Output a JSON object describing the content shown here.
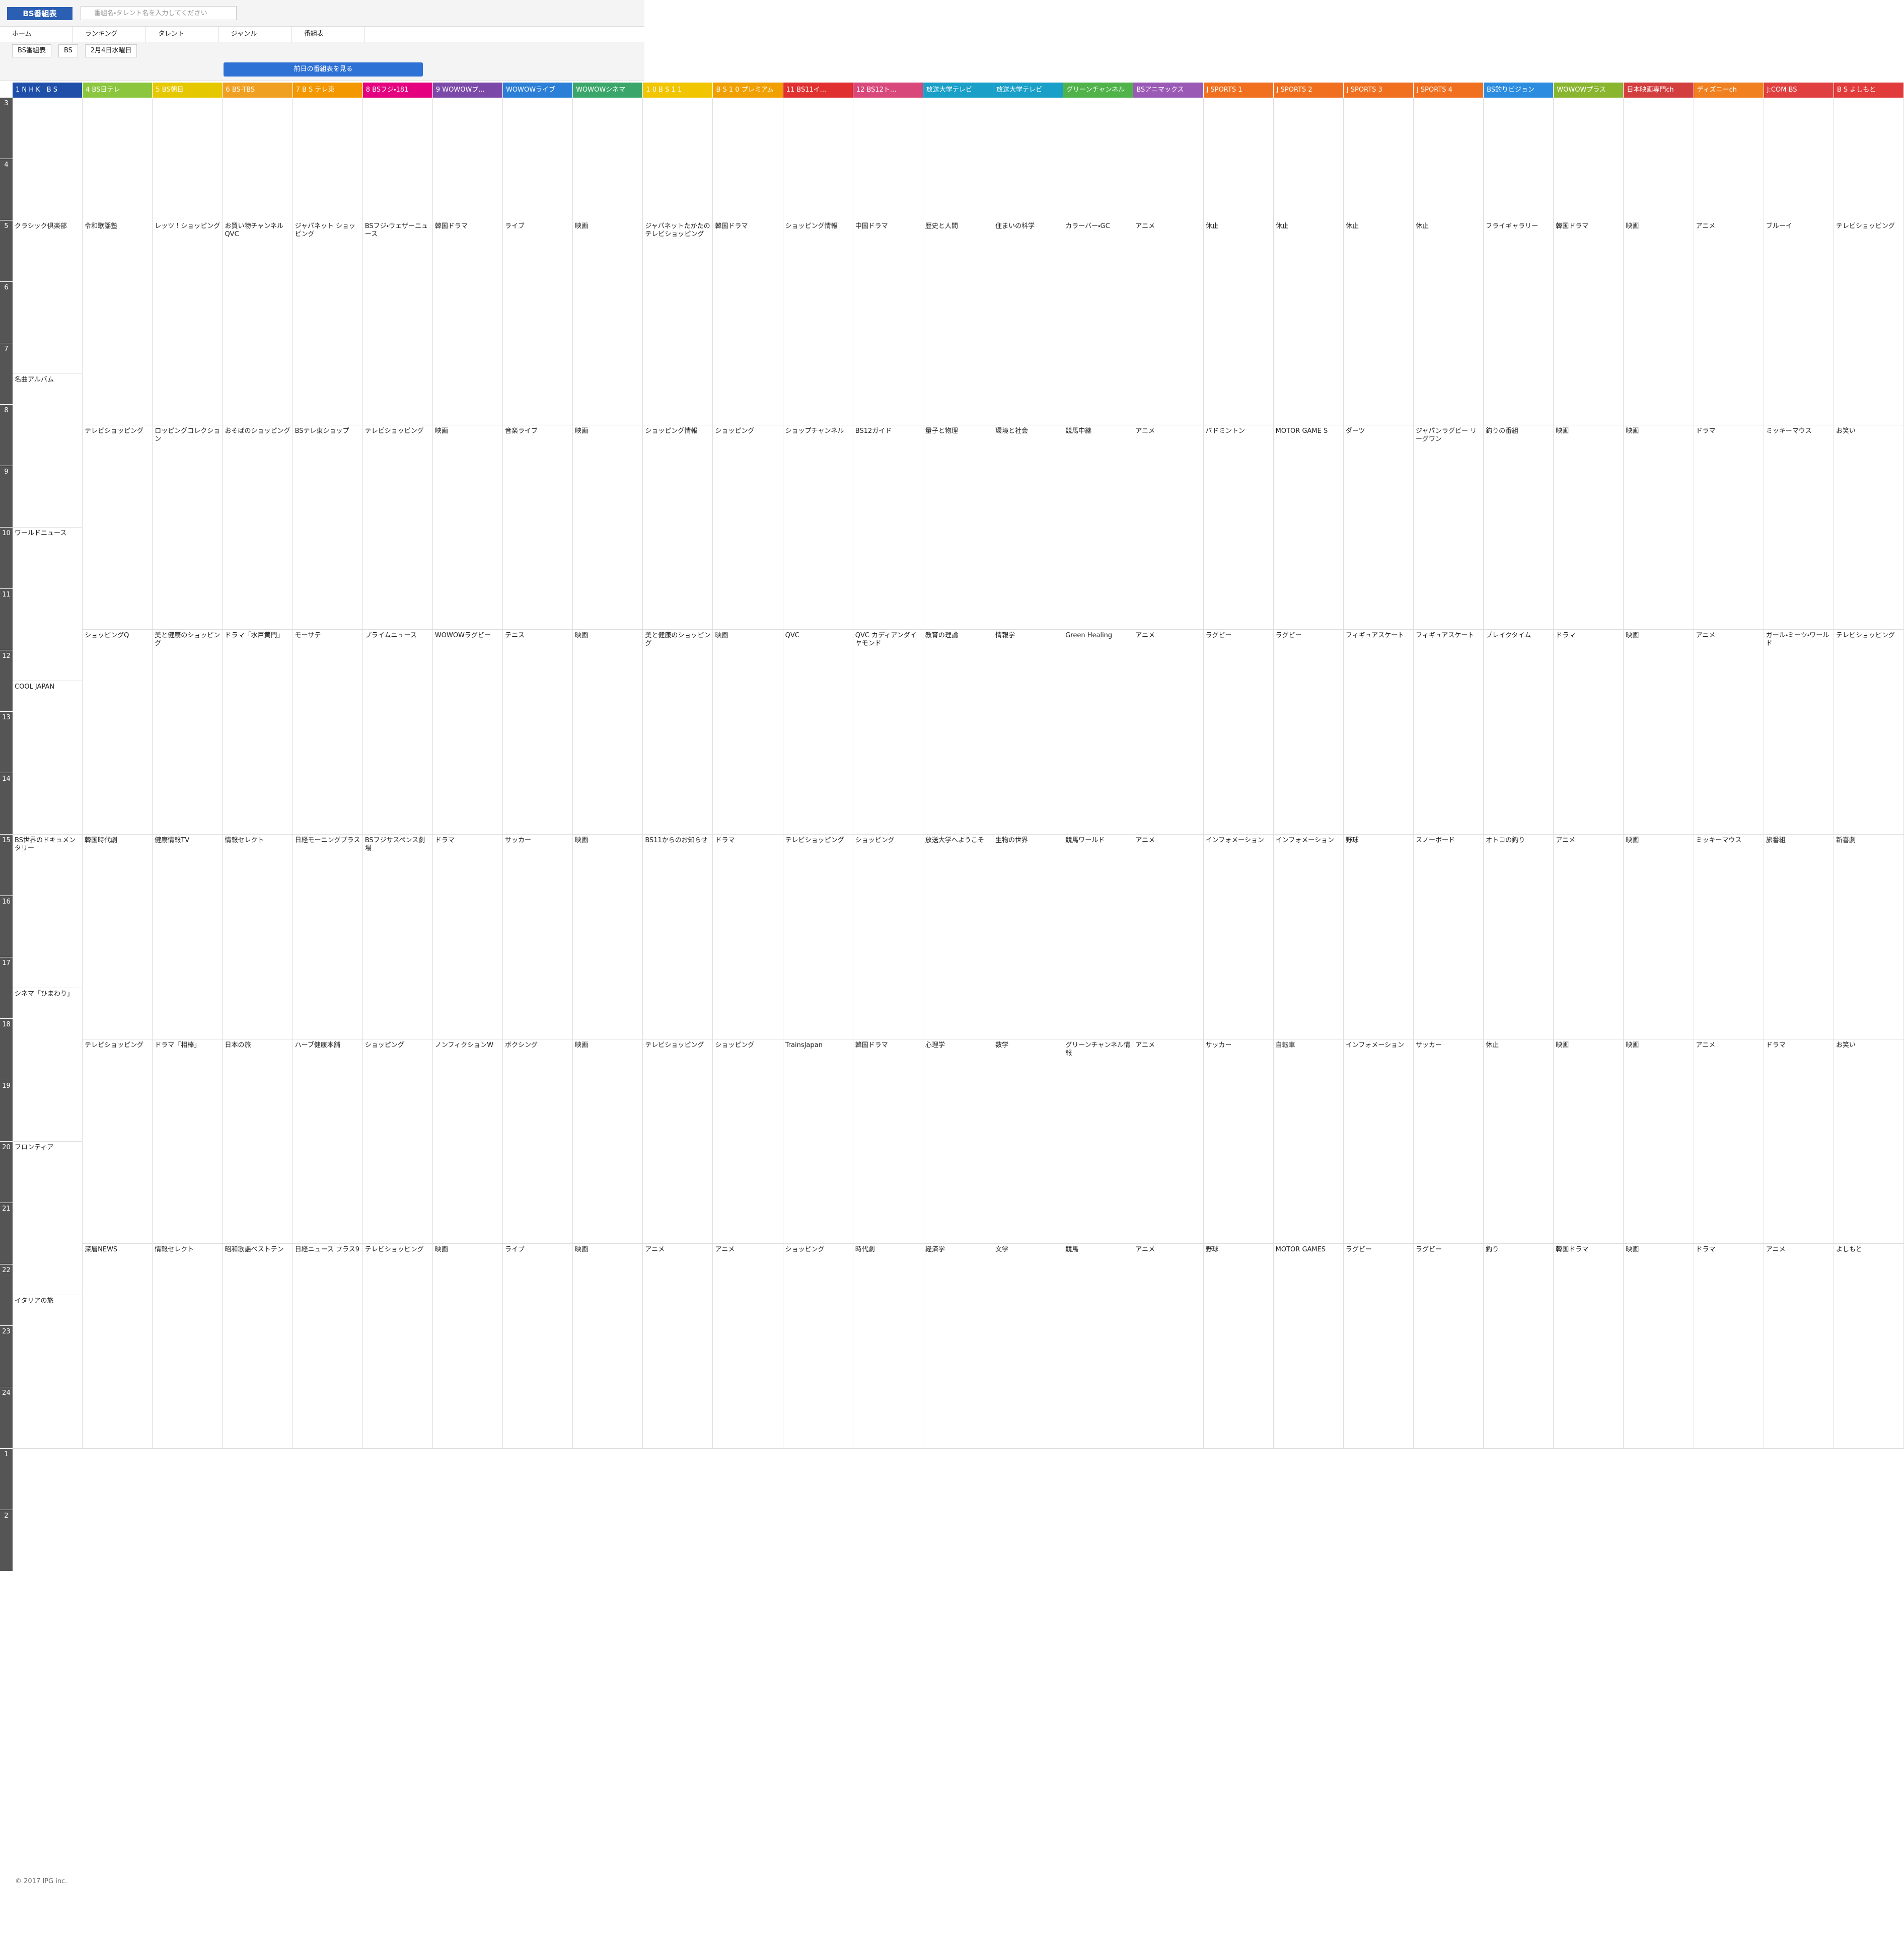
{
  "header": {
    "logo": "BS番組表",
    "search_placeholder": "番組名・タレント名を入力してください",
    "tabs": [
      "ホーム",
      "ランキング",
      "タレント",
      "ジャンル",
      "番組表"
    ],
    "selects": [
      "BS番組表",
      "BS",
      "2月4日水曜日"
    ],
    "prev_button": "前日の番組表を見る"
  },
  "hours": [
    "3",
    "4",
    "5",
    "6",
    "7",
    "8",
    "9",
    "10",
    "11",
    "12",
    "13",
    "14",
    "15",
    "16",
    "17",
    "18",
    "19",
    "20",
    "21",
    "22",
    "23",
    "24",
    "1",
    "2"
  ],
  "channels": [
    {
      "name": "1 N H K　B S",
      "color": "#1f4fa8",
      "programs": [
        "クラシック倶楽部",
        "名曲アルバム",
        "ワールドニュース",
        "COOL JAPAN",
        "BS世界のドキュメンタリー",
        "シネマ「ひまわり」",
        "フロンティア",
        "イタリアの旅"
      ]
    },
    {
      "name": "4 BS日テレ",
      "color": "#8cc63f",
      "programs": [
        "令和歌謡塾",
        "テレビショッピング",
        "ショッピングQ",
        "韓国時代劇",
        "テレビショッピング",
        "深層NEWS"
      ]
    },
    {
      "name": "5 BS朝日",
      "color": "#e6c800",
      "programs": [
        "レッツ！ショッピング",
        "ロッピングコレクション",
        "美と健康のショッピング",
        "健康情報TV",
        "ドラマ「相棒」",
        "情報セレクト"
      ]
    },
    {
      "name": "6 BS-TBS",
      "color": "#f0a020",
      "programs": [
        "お買い物チャンネル QVC",
        "おそばのショッピング",
        "ドラマ「水戸黄門」",
        "情報セレクト",
        "日本の旅",
        "昭和歌謡ベストテン"
      ]
    },
    {
      "name": "7 B S テレ東",
      "color": "#f39800",
      "programs": [
        "ジャパネット ショッピング",
        "BSテレ東ショップ",
        "モーサテ",
        "日経モーニングプラス",
        "ハーブ健康本舗",
        "日経ニュース プラス9"
      ]
    },
    {
      "name": "8 BSフジ・181",
      "color": "#e4007f",
      "programs": [
        "BSフジ・ウェザーニュース",
        "テレビショッピング",
        "プライムニュース",
        "BSフジサスペンス劇場",
        "ショッピング",
        "テレビショッピング"
      ]
    },
    {
      "name": "9 WOWOWプ...",
      "color": "#7b4aa8",
      "programs": [
        "韓国ドラマ",
        "映画",
        "WOWOWラグビー",
        "ドラマ",
        "ノンフィクションW",
        "映画"
      ]
    },
    {
      "name": "WOWOWライブ",
      "color": "#2c7fd6",
      "programs": [
        "ライブ",
        "音楽ライブ",
        "テニス",
        "サッカー",
        "ボクシング",
        "ライブ"
      ]
    },
    {
      "name": "WOWOWシネマ",
      "color": "#3aa66a",
      "programs": [
        "映画",
        "映画",
        "映画",
        "映画",
        "映画",
        "映画"
      ]
    },
    {
      "name": "1 0 B S 1 1",
      "color": "#f1c500",
      "programs": [
        "ジャパネットたかたのテレビショッピング",
        "ショッピング情報",
        "美と健康のショッピング",
        "BS11からのお知らせ",
        "テレビショッピング",
        "アニメ"
      ]
    },
    {
      "name": "B S 1 0 プレミアム",
      "color": "#f0a000",
      "programs": [
        "韓国ドラマ",
        "ショッピング",
        "映画",
        "ドラマ",
        "ショッピング",
        "アニメ"
      ]
    },
    {
      "name": "11 BS11イ...",
      "color": "#e03030",
      "programs": [
        "ショッピング情報",
        "ショップチャンネル",
        "QVC",
        "テレビショッピング",
        "TrainsJapan",
        "ショッピング"
      ]
    },
    {
      "name": "12 BS12ト...",
      "color": "#d9487a",
      "programs": [
        "中国ドラマ",
        "BS12ガイド",
        "QVC カディアンダイヤモンド",
        "ショッピング",
        "韓国ドラマ",
        "時代劇"
      ]
    },
    {
      "name": "放送大学テレビ",
      "color": "#1aa0c8",
      "programs": [
        "歴史と人間",
        "量子と物理",
        "教育の理論",
        "放送大学へようこそ",
        "心理学",
        "経済学"
      ]
    },
    {
      "name": "放送大学テレビ",
      "color": "#1aa0c8",
      "programs": [
        "住まいの科学",
        "環境と社会",
        "情報学",
        "生物の世界",
        "数学",
        "文学"
      ]
    },
    {
      "name": "グリーンチャンネル",
      "color": "#4fb34a",
      "programs": [
        "カラーバー・GC",
        "競馬中継",
        "Green Healing",
        "競馬ワールド",
        "グリーンチャンネル情報",
        "競馬"
      ]
    },
    {
      "name": "BSアニマックス",
      "color": "#9b59b6",
      "programs": [
        "アニメ",
        "アニメ",
        "アニメ",
        "アニメ",
        "アニメ",
        "アニメ"
      ]
    },
    {
      "name": "J SPORTS 1",
      "color": "#f07020",
      "programs": [
        "休止",
        "バドミントン",
        "ラグビー",
        "インフォメーション",
        "サッカー",
        "野球"
      ]
    },
    {
      "name": "J SPORTS 2",
      "color": "#f07020",
      "programs": [
        "休止",
        "MOTOR GAME S",
        "ラグビー",
        "インフォメーション",
        "自転車",
        "MOTOR GAMES"
      ]
    },
    {
      "name": "J SPORTS 3",
      "color": "#f07020",
      "programs": [
        "休止",
        "ダーツ",
        "フィギュアスケート",
        "野球",
        "インフォメーション",
        "ラグビー"
      ]
    },
    {
      "name": "J SPORTS 4",
      "color": "#f07020",
      "programs": [
        "休止",
        "ジャパンラグビー リーグワン",
        "フィギュアスケート",
        "スノーボード",
        "サッカー",
        "ラグビー"
      ]
    },
    {
      "name": "BS釣りビジョン",
      "color": "#2b8ce0",
      "programs": [
        "フライギャラリー",
        "釣りの番組",
        "ブレイクタイム",
        "オトコの釣り",
        "休止",
        "釣り"
      ]
    },
    {
      "name": "WOWOWプラス",
      "color": "#8ab52f",
      "programs": [
        "韓国ドラマ",
        "映画",
        "ドラマ",
        "アニメ",
        "映画",
        "韓国ドラマ"
      ]
    },
    {
      "name": "日本映画専門ch",
      "color": "#d33f3f",
      "programs": [
        "映画",
        "映画",
        "映画",
        "映画",
        "映画",
        "映画"
      ]
    },
    {
      "name": "ディズニーch",
      "color": "#f08020",
      "programs": [
        "アニメ",
        "ドラマ",
        "アニメ",
        "ミッキーマウス",
        "アニメ",
        "ドラマ"
      ]
    },
    {
      "name": "J:COM BS",
      "color": "#e04040",
      "programs": [
        "ブルーイ",
        "ミッキーマウス",
        "ガール・ミーツ・ワールド",
        "旅番組",
        "ドラマ",
        "アニメ"
      ]
    },
    {
      "name": "B S よしもと",
      "color": "#e23b3b",
      "programs": [
        "テレビショッピング",
        "お笑い",
        "テレビショッピング",
        "新喜劇",
        "お笑い",
        "よしもと"
      ]
    }
  ],
  "footer": "© 2017 IPG inc."
}
